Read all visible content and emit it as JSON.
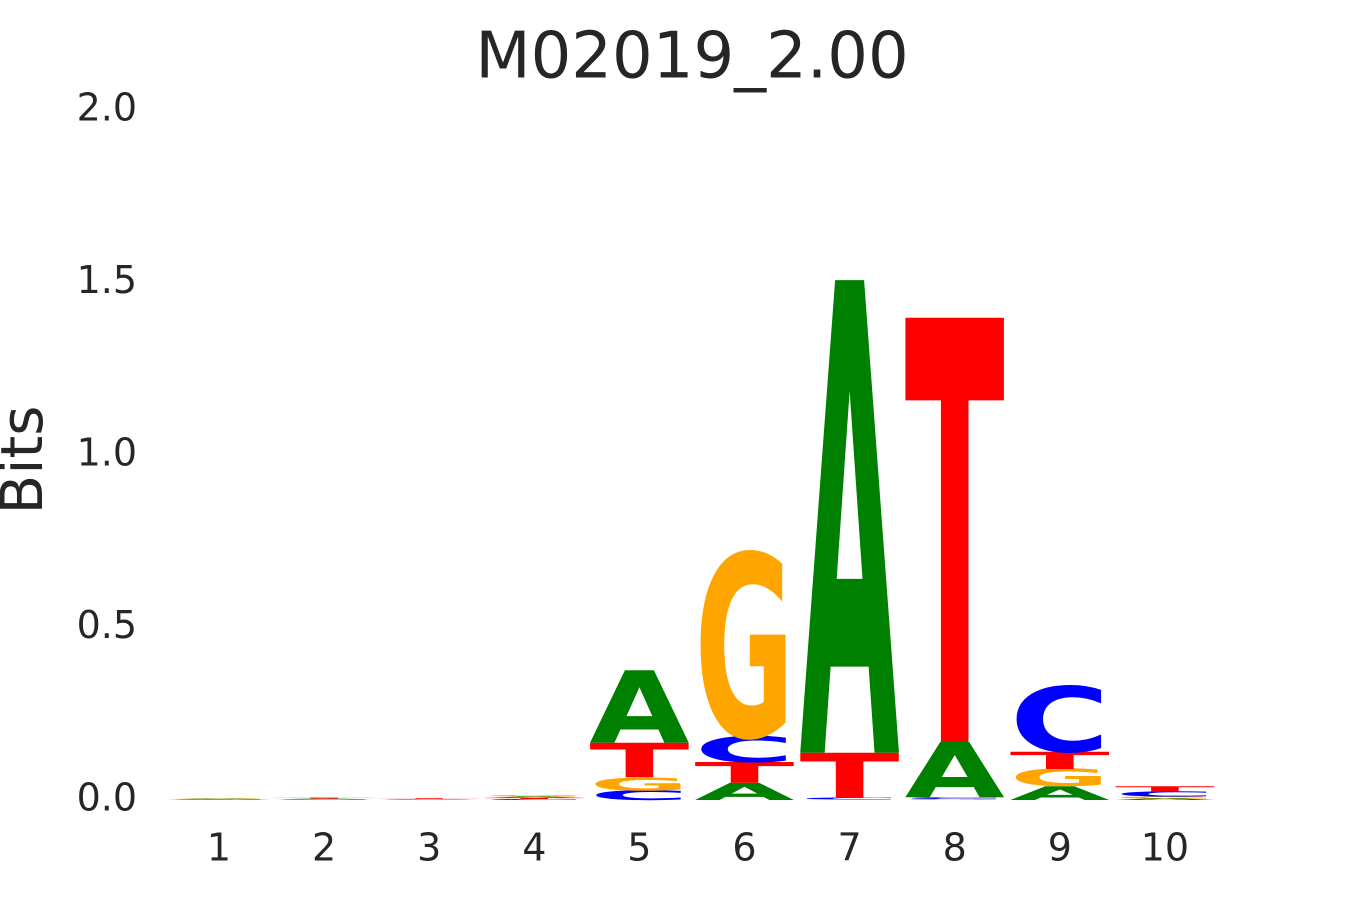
{
  "chart_data": {
    "type": "logo",
    "title": "M02019_2.00",
    "y_label": "Bits",
    "categories": [
      "1",
      "2",
      "3",
      "4",
      "5",
      "6",
      "7",
      "8",
      "9",
      "10"
    ],
    "series": [
      {
        "name": "A",
        "color": "#008000",
        "values": [
          0.002,
          0.002,
          0.001,
          0.004,
          0.21,
          0.05,
          1.37,
          0.16,
          0.04,
          0.005
        ]
      },
      {
        "name": "C",
        "color": "#0000ff",
        "values": [
          0.001,
          0.001,
          0.001,
          0.003,
          0.028,
          0.075,
          0.005,
          0.005,
          0.19,
          0.015
        ]
      },
      {
        "name": "G",
        "color": "#ffa500",
        "values": [
          0.002,
          0.001,
          0.001,
          0.004,
          0.038,
          0.53,
          0.002,
          0.003,
          0.05,
          0.005
        ]
      },
      {
        "name": "T",
        "color": "#ff0000",
        "values": [
          0.001,
          0.003,
          0.002,
          0.003,
          0.1,
          0.06,
          0.13,
          1.23,
          0.05,
          0.015
        ]
      }
    ],
    "ylim": [
      0,
      2
    ],
    "yticks": [
      {
        "value": 0,
        "label": "0.0"
      },
      {
        "value": 0.5,
        "label": "0.5"
      },
      {
        "value": 1,
        "label": "1.0"
      },
      {
        "value": 1.5,
        "label": "1.5"
      },
      {
        "value": 2,
        "label": "2.0"
      }
    ]
  }
}
